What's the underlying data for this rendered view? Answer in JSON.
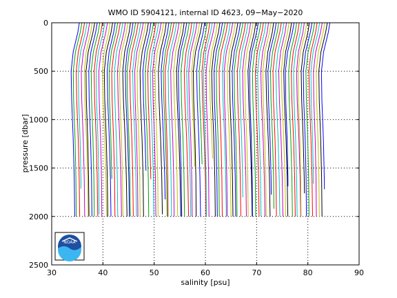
{
  "chart_data": {
    "type": "line",
    "title": "WMO ID 5904121, internal ID 4623, 09−May−2020",
    "xlabel": "salinity [psu]",
    "ylabel": "pressure [dbar]",
    "xlim": [
      30,
      90
    ],
    "ylim": [
      0,
      2500
    ],
    "y_reversed": true,
    "grid": "dotted",
    "xticks": [
      "30",
      "40",
      "50",
      "60",
      "70",
      "80",
      "90"
    ],
    "yticks": [
      "0",
      "500",
      "1000",
      "1500",
      "2000",
      "2500"
    ],
    "profile_offset": "waterfall, each profile shifted right by about 0.5 psu",
    "profile_count": 99,
    "first_profile_x_at_0_dbar": 35.4,
    "last_profile_x_at_0_dbar": 84.3,
    "profile_colors": [
      "#0000ff",
      "#00a000",
      "#ff0000",
      "#00c0c0",
      "#c000c0",
      "#c0c000",
      "#000000"
    ],
    "profile_shape_psu_relative_to_surface": [
      {
        "pressure": 0,
        "salinity": 0.0
      },
      {
        "pressure": 100,
        "salinity": -0.3
      },
      {
        "pressure": 300,
        "salinity": -1.2
      },
      {
        "pressure": 500,
        "salinity": -1.6
      },
      {
        "pressure": 800,
        "salinity": -1.5
      },
      {
        "pressure": 1200,
        "salinity": -1.2
      },
      {
        "pressure": 1600,
        "salinity": -1.0
      },
      {
        "pressure": 2000,
        "salinity": -0.9
      }
    ],
    "max_pressure_range_dbar": [
      1300,
      2000
    ]
  },
  "logo": {
    "label": "NOAA"
  }
}
